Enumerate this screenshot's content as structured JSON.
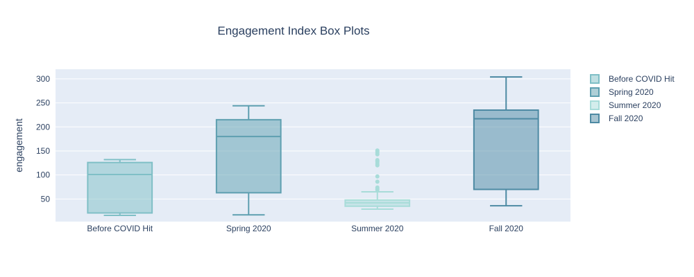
{
  "chart_data": {
    "type": "box",
    "title": "Engagement Index Box Plots",
    "xlabel": "",
    "ylabel": "engagement",
    "ylim": [
      3,
      320
    ],
    "yticks": [
      50,
      100,
      150,
      200,
      250,
      300
    ],
    "grid": true,
    "legend_position": "top-right",
    "plot_background": "#e5ecf6",
    "categories": [
      "Before COVID Hit",
      "Spring 2020",
      "Summer 2020",
      "Fall 2020"
    ],
    "series": [
      {
        "name": "Before COVID Hit",
        "color": "#7fbfc6",
        "min": 16,
        "q1": 21,
        "median": 101,
        "q3": 126,
        "max": 132,
        "outliers": []
      },
      {
        "name": "Spring 2020",
        "color": "#5e9fb0",
        "min": 17,
        "q1": 63,
        "median": 180,
        "q3": 215,
        "max": 244,
        "outliers": []
      },
      {
        "name": "Summer 2020",
        "color": "#a8dcd9",
        "min": 29,
        "q1": 35,
        "median": 42,
        "q3": 48,
        "max": 65,
        "outliers": [
          69,
          71,
          74,
          86,
          97,
          120,
          123,
          127,
          129,
          131,
          143,
          146,
          149,
          151
        ]
      },
      {
        "name": "Fall 2020",
        "color": "#4d8aa3",
        "min": 36,
        "q1": 70,
        "median": 217,
        "q3": 235,
        "max": 304,
        "outliers": []
      }
    ]
  }
}
